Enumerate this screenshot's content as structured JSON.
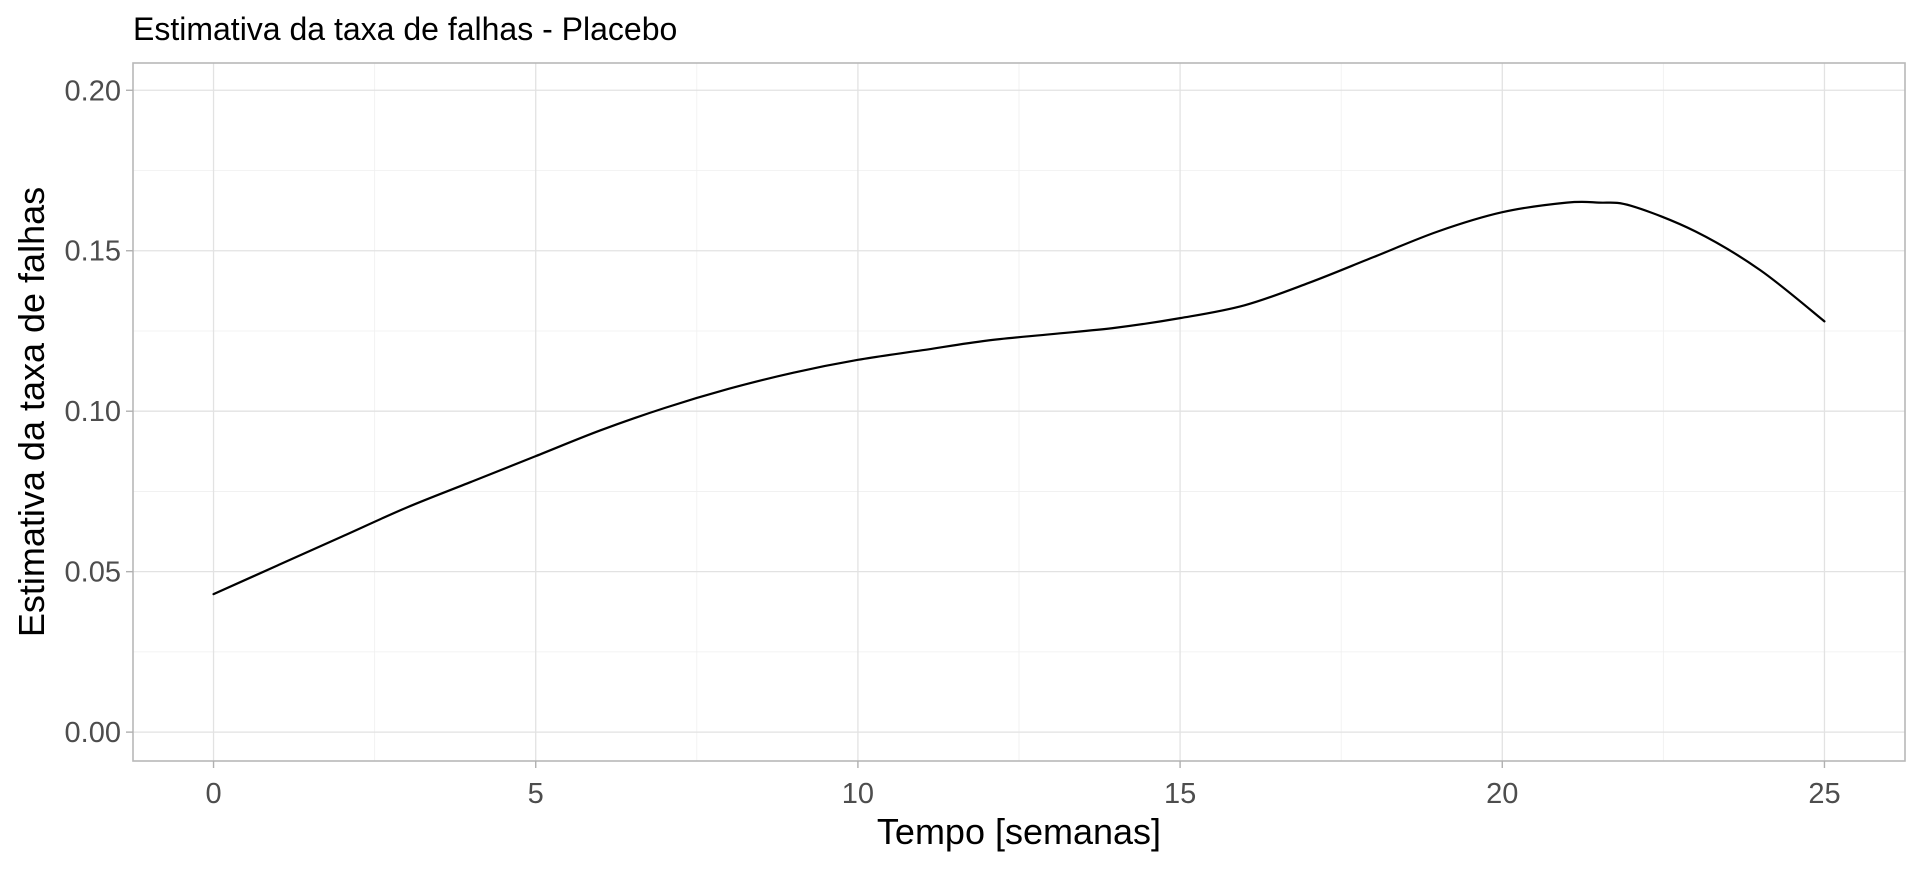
{
  "chart_data": {
    "type": "line",
    "title": "Estimativa da taxa de falhas - Placebo",
    "xlabel": "Tempo [semanas]",
    "ylabel": "Estimativa da taxa de falhas",
    "xlim": [
      -1.25,
      26.25
    ],
    "ylim": [
      -0.009,
      0.2085
    ],
    "x_ticks": [
      0,
      5,
      10,
      15,
      20,
      25
    ],
    "x_tick_labels": [
      "0",
      "5",
      "10",
      "15",
      "20",
      "25"
    ],
    "y_ticks": [
      0.0,
      0.05,
      0.1,
      0.15,
      0.2
    ],
    "y_tick_labels": [
      "0.00",
      "0.05",
      "0.10",
      "0.15",
      "0.20"
    ],
    "grid": true,
    "series": [
      {
        "color": "#000000",
        "x": [
          0,
          1,
          2,
          3,
          4,
          5,
          6,
          7,
          8,
          9,
          10,
          11,
          12,
          13,
          14,
          15,
          16,
          17,
          18,
          19,
          20,
          21,
          21.5,
          22,
          23,
          24,
          25
        ],
        "y": [
          0.043,
          0.052,
          0.061,
          0.07,
          0.078,
          0.086,
          0.094,
          0.101,
          0.107,
          0.112,
          0.116,
          0.119,
          0.122,
          0.124,
          0.126,
          0.129,
          0.133,
          0.14,
          0.148,
          0.156,
          0.162,
          0.165,
          0.165,
          0.164,
          0.156,
          0.144,
          0.128
        ]
      }
    ]
  }
}
